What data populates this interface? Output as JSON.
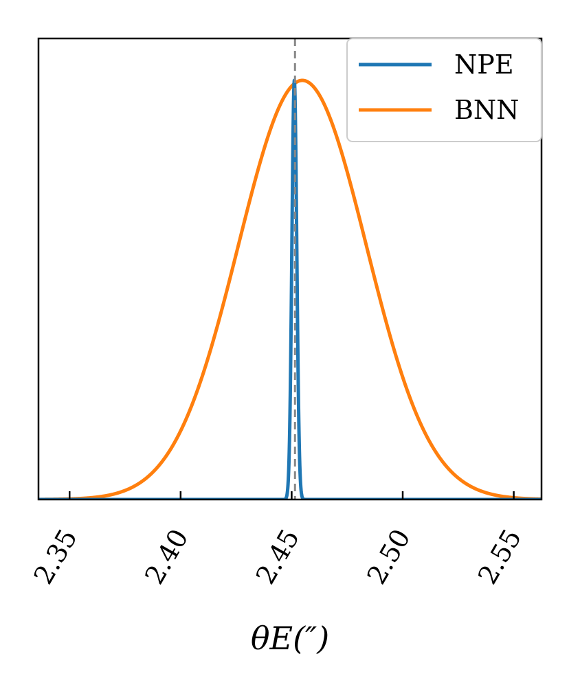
{
  "chart_data": {
    "type": "line",
    "title": "",
    "xlabel": "θE(″)",
    "ylabel": "",
    "xlim": [
      2.336,
      2.5625
    ],
    "ylim": [
      0,
      1.0
    ],
    "x_ticks": [
      2.35,
      2.4,
      2.45,
      2.5,
      2.55
    ],
    "x_tick_labels": [
      "2.35",
      "2.40",
      "2.45",
      "2.50",
      "2.55"
    ],
    "y_ticks_visible": false,
    "grid": false,
    "legend": {
      "placement": "top-right",
      "entries": [
        "NPE",
        "BNN"
      ]
    },
    "reference_line": {
      "x": 2.4515,
      "style": "dashed",
      "color": "#888888"
    },
    "series": [
      {
        "name": "NPE",
        "color": "#1f77b4",
        "shape": "gaussian",
        "mean": 2.4512,
        "std": 0.0011,
        "peak": 1.0
      },
      {
        "name": "BNN",
        "color": "#ff7f0e",
        "shape": "gaussian",
        "mean": 2.4548,
        "std": 0.0288,
        "peak": 1.0
      }
    ]
  }
}
